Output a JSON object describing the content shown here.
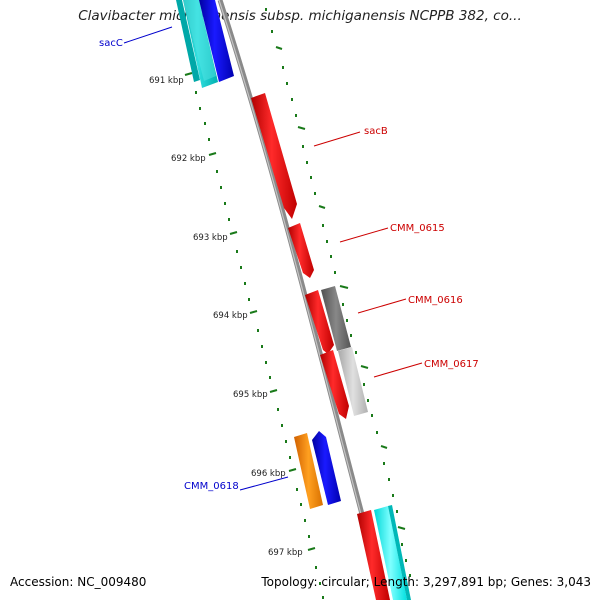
{
  "header": {
    "title": "Clavibacter michiganensis subsp. michiganensis NCPPB 382, co..."
  },
  "footer": {
    "accession": "Accession: NC_009480",
    "stats": "Topology: circular; Length: 3,297,891 bp; Genes: 3,043"
  },
  "map": {
    "tick_labels": [
      "691 kbp",
      "692 kbp",
      "693 kbp",
      "694 kbp",
      "695 kbp",
      "696 kbp",
      "697 kbp"
    ],
    "gene_labels": [
      {
        "text": "sacC",
        "color": "#0000cc"
      },
      {
        "text": "sacB",
        "color": "#cc0000"
      },
      {
        "text": "CMM_0615",
        "color": "#cc0000"
      },
      {
        "text": "CMM_0616",
        "color": "#cc0000"
      },
      {
        "text": "CMM_0617",
        "color": "#cc0000"
      },
      {
        "text": "CMM_0618",
        "color": "#0000cc"
      }
    ],
    "colors": {
      "backbone": "#8c8c8c",
      "ticks": "#1a7a1a",
      "forward_gene": "#ff0000",
      "reverse_gene": "#0000ff",
      "cyan_feature": "#00cccc",
      "orange_feature": "#ff8c00",
      "gray_feature": "#707070",
      "lightgray_feature": "#c0c0c0"
    }
  }
}
